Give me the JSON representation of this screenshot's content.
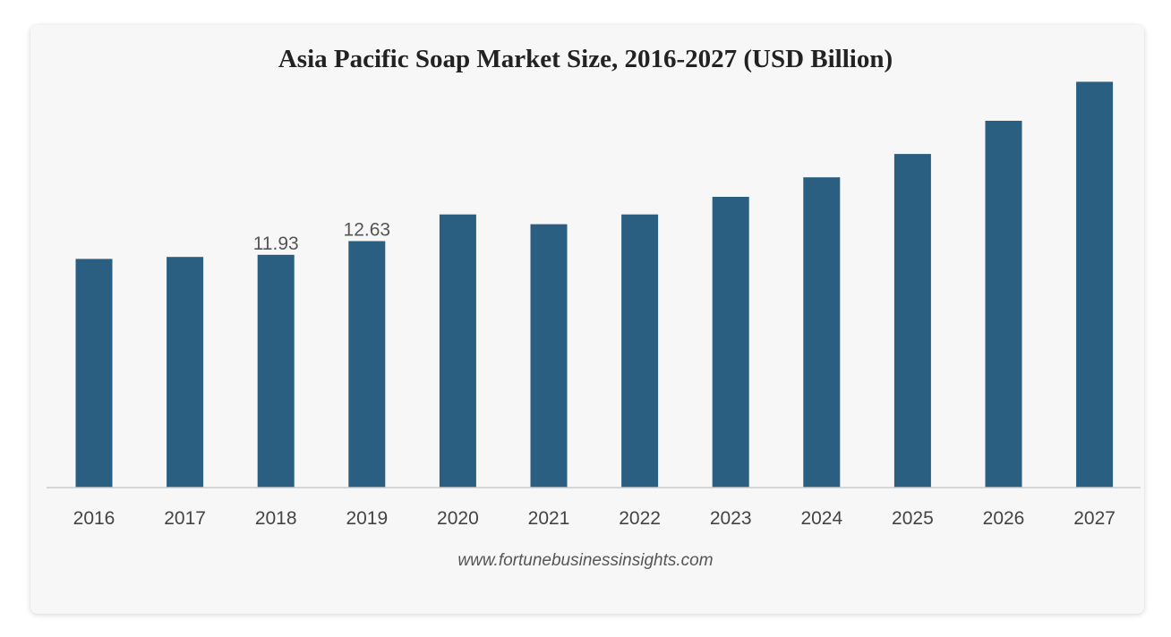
{
  "chart_data": {
    "type": "bar",
    "title": "Asia Pacific Soap Market Size, 2016-2027 (USD Billion)",
    "xlabel": "",
    "ylabel": "",
    "categories": [
      "2016",
      "2017",
      "2018",
      "2019",
      "2020",
      "2021",
      "2022",
      "2023",
      "2024",
      "2025",
      "2026",
      "2027"
    ],
    "series": [
      {
        "values": [
          11.72,
          11.82,
          11.93,
          12.63,
          14.0,
          13.5,
          14.0,
          14.9,
          15.9,
          17.1,
          18.8,
          20.8
        ],
        "data_labels": [
          "",
          "",
          "11.93",
          "12.63",
          "",
          "",
          "",
          "",
          "",
          "",
          "",
          ""
        ]
      }
    ],
    "ylim": [
      0,
      21
    ],
    "grid": false,
    "legend": "none",
    "colors": {
      "bar": "#2a5f82",
      "axis": "#cccccc"
    }
  },
  "footer": {
    "source": "www.fortunebusinessinsights.com"
  }
}
